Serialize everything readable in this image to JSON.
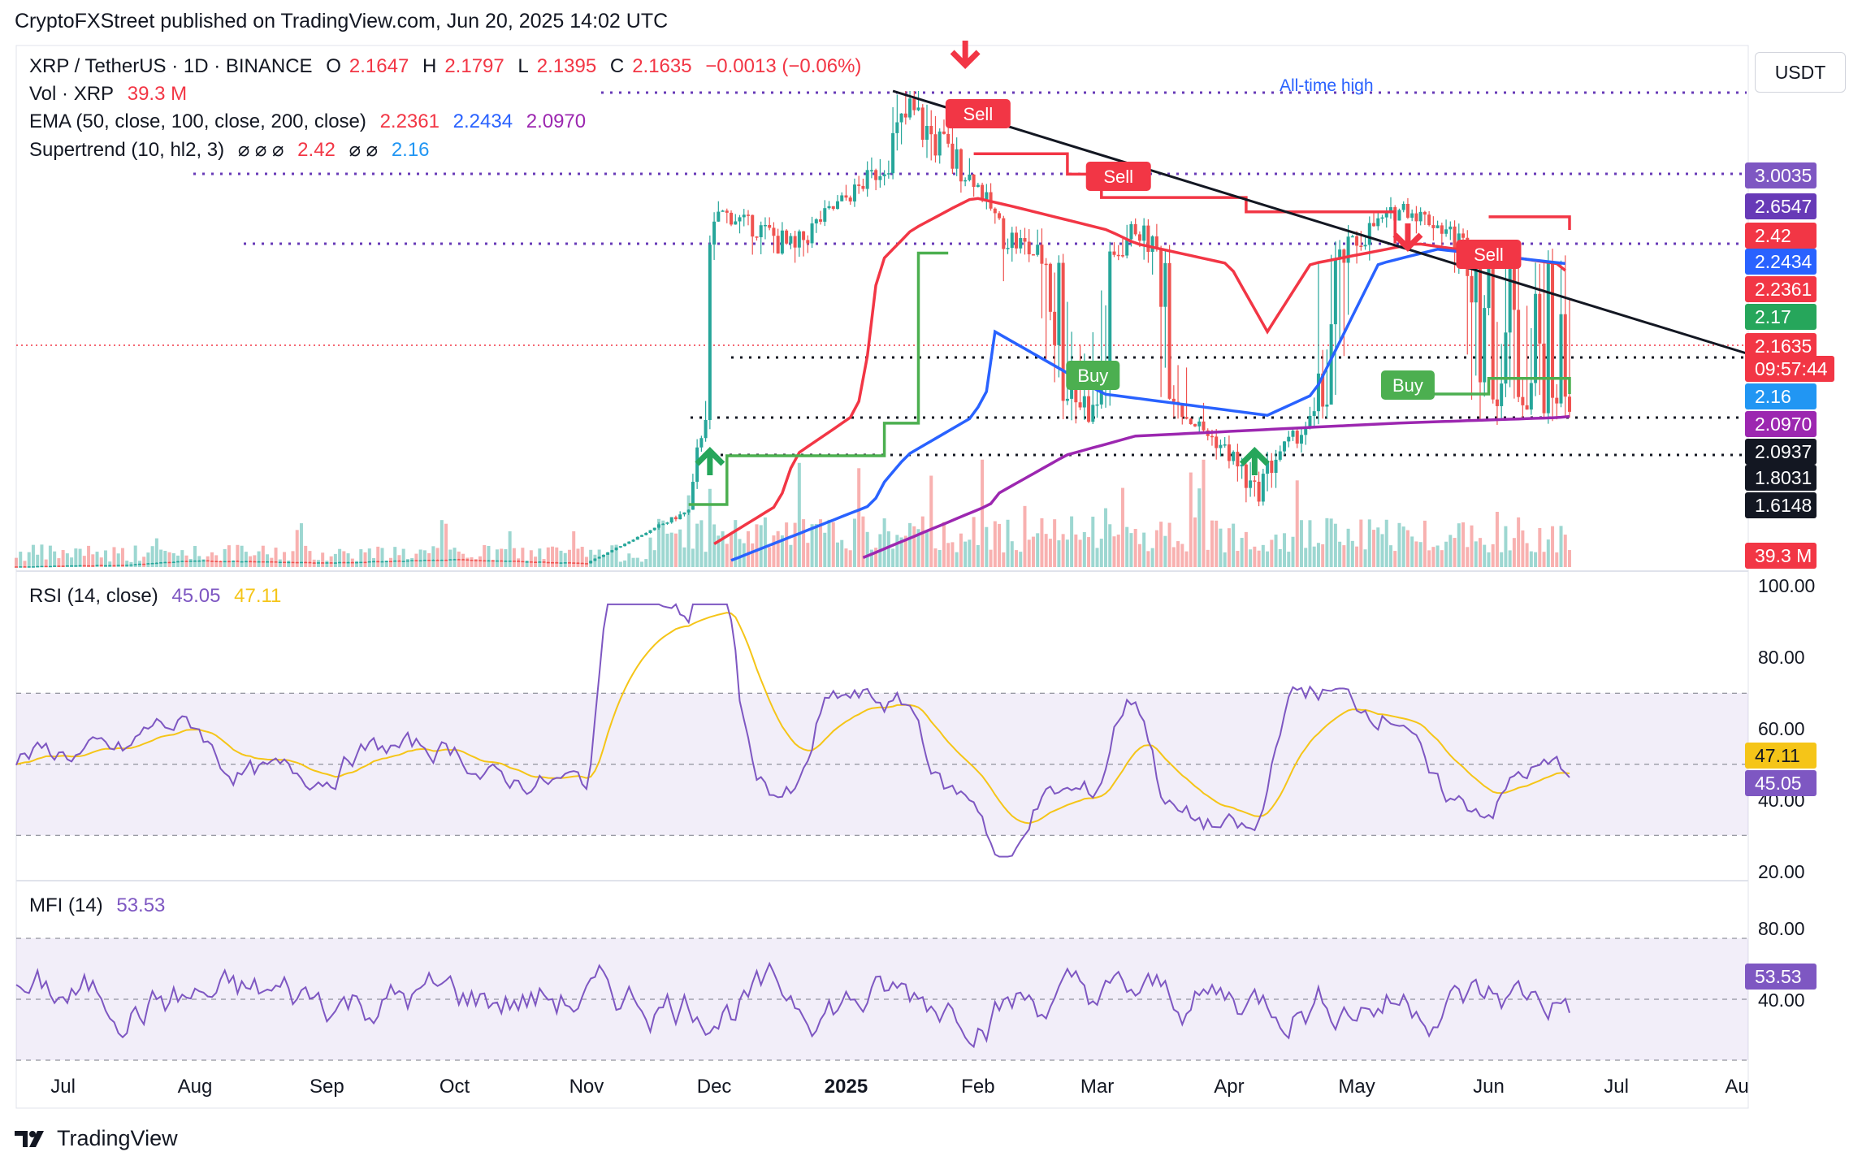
{
  "header": {
    "text": "CryptoFXStreet published on TradingView.com, Jun 20, 2025 14:02 UTC"
  },
  "legend": {
    "symbol": "XRP / TetherUS · 1D · BINANCE",
    "ohlc": {
      "o_label": "O",
      "o": "2.1647",
      "h_label": "H",
      "h": "2.1797",
      "l_label": "L",
      "l": "2.1395",
      "c_label": "C",
      "c": "2.1635",
      "change": "−0.0013 (−0.06%)"
    },
    "vol": {
      "label": "Vol · XRP",
      "value": "39.3 M"
    },
    "ema": {
      "label": "EMA (50, close, 100, close, 200, close)",
      "v50": "2.2361",
      "v100": "2.2434",
      "v200": "2.0970"
    },
    "supertrend": {
      "label": "Supertrend (10, hl2, 3)",
      "mask": "⌀ ⌀ ⌀",
      "v1": "2.42",
      "mask2": "⌀ ⌀",
      "v2": "2.16"
    }
  },
  "currency": "USDT",
  "annotations": {
    "ath": "All-time high",
    "sell": "Sell",
    "buy": "Buy"
  },
  "price_tags": [
    {
      "text": "3.0035",
      "color": "#7e57c2"
    },
    {
      "text": "2.6547",
      "color": "#673ab7"
    },
    {
      "text": "2.42",
      "color": "#f23645"
    },
    {
      "text": "2.2434",
      "color": "#2962ff"
    },
    {
      "text": "2.2361",
      "color": "#f23645"
    },
    {
      "text": "2.17",
      "color": "#26a65b"
    },
    {
      "text": "2.1635",
      "color": "#f23645"
    },
    {
      "text": "09:57:44",
      "color": "#f23645"
    },
    {
      "text": "2.16",
      "color": "#2196f3"
    },
    {
      "text": "2.0970",
      "color": "#9c27b0"
    },
    {
      "text": "2.0937",
      "color": "#131722"
    },
    {
      "text": "1.8031",
      "color": "#131722"
    },
    {
      "text": "1.6148",
      "color": "#131722"
    },
    {
      "text": "39.3 M",
      "color": "#f23645"
    }
  ],
  "rsi": {
    "label": "RSI (14, close)",
    "value": "45.05",
    "ma": "47.11",
    "ticks": [
      "100.00",
      "80.00",
      "60.00",
      "40.00",
      "20.00"
    ]
  },
  "mfi": {
    "label": "MFI (14)",
    "value": "53.53",
    "ticks": [
      "80.00",
      "40.00"
    ]
  },
  "months": [
    "Jul",
    "Aug",
    "Sep",
    "Oct",
    "Nov",
    "Dec",
    "2025",
    "Feb",
    "Mar",
    "Apr",
    "May",
    "Jun",
    "Jul",
    "Au"
  ],
  "brand": "TradingView",
  "colors": {
    "bull": "#26a69a",
    "bear": "#ef5350",
    "ema50": "#f23645",
    "ema100": "#2962ff",
    "ema200": "#9c27b0",
    "st_up": "#4caf50",
    "st_down": "#f23645",
    "rsi": "#7e57c2",
    "rsi_ma": "#f5c518"
  },
  "chart_data": {
    "type": "line",
    "title": "XRP / TetherUS · 1D · BINANCE",
    "ylabel": "USDT",
    "price_levels": [
      3.0035,
      2.6547,
      2.42,
      2.2434,
      2.2361,
      2.17,
      2.1635,
      2.16,
      2.097,
      2.0937,
      1.8031,
      1.6148
    ],
    "dotted_levels": [
      3.0035,
      2.6547,
      2.0937,
      1.8031,
      1.6148
    ],
    "series": [
      {
        "name": "Close",
        "points": [
          [
            "2024-06-20",
            0.49
          ],
          [
            "2024-07-15",
            0.52
          ],
          [
            "2024-08-01",
            0.6
          ],
          [
            "2024-09-01",
            0.56
          ],
          [
            "2024-10-01",
            0.62
          ],
          [
            "2024-11-01",
            0.55
          ],
          [
            "2024-11-25",
            1.5
          ],
          [
            "2024-12-02",
            2.6
          ],
          [
            "2024-12-20",
            2.3
          ],
          [
            "2025-01-16",
            3.3
          ],
          [
            "2025-01-31",
            2.95
          ],
          [
            "2025-02-07",
            2.4
          ],
          [
            "2025-02-28",
            2.1
          ],
          [
            "2025-03-10",
            2.45
          ],
          [
            "2025-04-07",
            1.65
          ],
          [
            "2025-04-25",
            2.2
          ],
          [
            "2025-05-12",
            2.65
          ],
          [
            "2025-06-01",
            2.2
          ],
          [
            "2025-06-20",
            2.1635
          ]
        ]
      },
      {
        "name": "EMA (50)",
        "points": [
          [
            "2024-12-01",
            0.9
          ],
          [
            "2024-12-20",
            1.8
          ],
          [
            "2025-01-31",
            2.75
          ],
          [
            "2025-03-10",
            2.35
          ],
          [
            "2025-04-10",
            2.2
          ],
          [
            "2025-05-15",
            2.35
          ],
          [
            "2025-06-20",
            2.2361
          ]
        ]
      },
      {
        "name": "EMA (100)",
        "points": [
          [
            "2024-12-05",
            0.6
          ],
          [
            "2025-01-10",
            1.7
          ],
          [
            "2025-02-05",
            2.2
          ],
          [
            "2025-04-10",
            2.1
          ],
          [
            "2025-05-20",
            2.32
          ],
          [
            "2025-06-20",
            2.2434
          ]
        ]
      },
      {
        "name": "EMA (200)",
        "points": [
          [
            "2025-01-05",
            0.65
          ],
          [
            "2025-02-05",
            1.65
          ],
          [
            "2025-03-10",
            1.95
          ],
          [
            "2025-05-10",
            2.05
          ],
          [
            "2025-06-20",
            2.097
          ]
        ]
      }
    ],
    "rsi": {
      "value": 45.05,
      "ma": 47.11,
      "overbought": 70,
      "oversold": 30,
      "range": [
        20,
        100
      ]
    },
    "mfi": {
      "value": 53.53,
      "overbought": 80,
      "oversold": 20
    }
  }
}
